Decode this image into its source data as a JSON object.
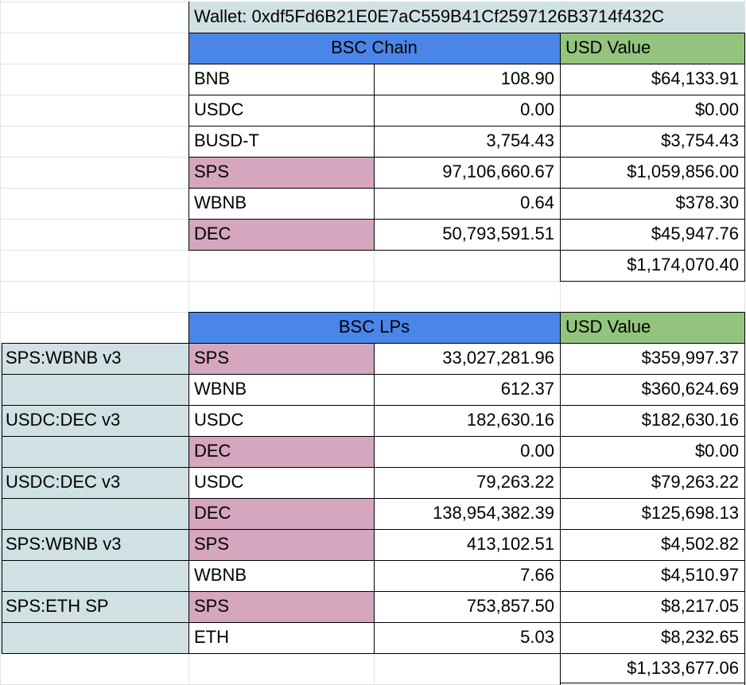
{
  "wallet_label": "Wallet: 0xdf5Fd6B21E0E7aC559B41Cf2597126B3714f432C",
  "colors": {
    "header_blue": "#4a86e8",
    "header_green": "#93c47d",
    "highlight_pink": "#d5a6bd",
    "pool_label_teal": "#d0e0e3",
    "grid_line": "#e2e2e2"
  },
  "chain": {
    "header": "BSC Chain",
    "value_header": "USD Value",
    "rows": [
      {
        "token": "BNB",
        "amount": "108.90",
        "usd": "$64,133.91"
      },
      {
        "token": "USDC",
        "amount": "0.00",
        "usd": "$0.00"
      },
      {
        "token": "BUSD-T",
        "amount": "3,754.43",
        "usd": "$3,754.43"
      },
      {
        "token": "SPS",
        "amount": "97,106,660.67",
        "usd": "$1,059,856.00"
      },
      {
        "token": "WBNB",
        "amount": "0.64",
        "usd": "$378.30"
      },
      {
        "token": "DEC",
        "amount": "50,793,591.51",
        "usd": "$45,947.76"
      }
    ],
    "total": "$1,174,070.40"
  },
  "lps": {
    "header": "BSC LPs",
    "value_header": "USD Value",
    "rows": [
      {
        "pool": "SPS:WBNB v3",
        "token": "SPS",
        "amount": "33,027,281.96",
        "usd": "$359,997.37"
      },
      {
        "pool": "",
        "token": "WBNB",
        "amount": "612.37",
        "usd": "$360,624.69"
      },
      {
        "pool": "USDC:DEC v3",
        "token": "USDC",
        "amount": "182,630.16",
        "usd": "$182,630.16"
      },
      {
        "pool": "",
        "token": "DEC",
        "amount": "0.00",
        "usd": "$0.00"
      },
      {
        "pool": "USDC:DEC v3",
        "token": "USDC",
        "amount": "79,263.22",
        "usd": "$79,263.22"
      },
      {
        "pool": "",
        "token": "DEC",
        "amount": "138,954,382.39",
        "usd": "$125,698.13"
      },
      {
        "pool": "SPS:WBNB v3",
        "token": "SPS",
        "amount": "413,102.51",
        "usd": "$4,502.82"
      },
      {
        "pool": "",
        "token": "WBNB",
        "amount": "7.66",
        "usd": "$4,510.97"
      },
      {
        "pool": "SPS:ETH SP",
        "token": "SPS",
        "amount": "753,857.50",
        "usd": "$8,217.05"
      },
      {
        "pool": "",
        "token": "ETH",
        "amount": "5.03",
        "usd": "$8,232.65"
      }
    ],
    "total": "$1,133,677.06"
  }
}
